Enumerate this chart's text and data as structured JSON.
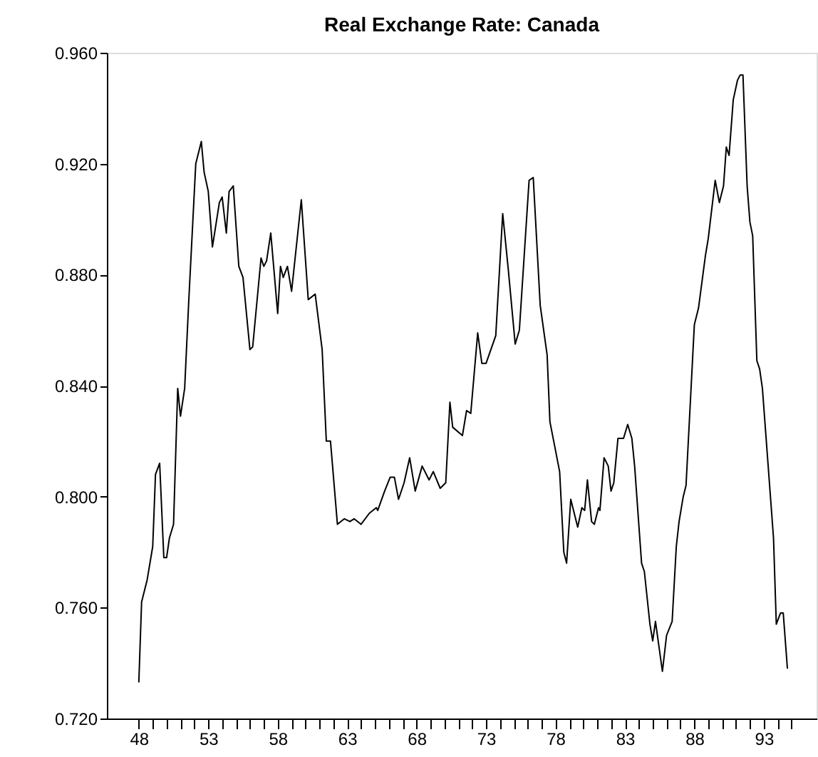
{
  "chart_data": {
    "type": "line",
    "title": "Real Exchange Rate: Canada",
    "x": [
      48.0,
      48.2,
      48.6,
      49.0,
      49.2,
      49.5,
      49.8,
      50.0,
      50.2,
      50.5,
      50.8,
      51.0,
      51.3,
      51.6,
      52.1,
      52.5,
      52.7,
      53.0,
      53.3,
      53.8,
      54.0,
      54.3,
      54.5,
      54.8,
      55.2,
      55.5,
      56.0,
      56.2,
      56.8,
      57.0,
      57.2,
      57.5,
      58.0,
      58.2,
      58.4,
      58.7,
      59.0,
      59.7,
      60.2,
      60.7,
      61.2,
      61.5,
      61.8,
      62.3,
      62.8,
      63.2,
      63.5,
      64.0,
      64.6,
      65.1,
      65.2,
      65.7,
      66.1,
      66.4,
      66.7,
      67.1,
      67.5,
      67.9,
      68.4,
      68.9,
      69.2,
      69.7,
      70.1,
      70.4,
      70.6,
      71.3,
      71.6,
      71.9,
      72.4,
      72.7,
      73.0,
      73.7,
      74.2,
      74.6,
      75.1,
      75.4,
      76.1,
      76.4,
      76.9,
      77.4,
      77.6,
      78.3,
      78.6,
      78.8,
      79.1,
      79.6,
      79.9,
      80.1,
      80.3,
      80.6,
      80.8,
      81.1,
      81.2,
      81.5,
      81.8,
      82.0,
      82.2,
      82.5,
      82.9,
      83.2,
      83.5,
      83.7,
      84.2,
      84.4,
      84.8,
      85.0,
      85.2,
      85.7,
      86.0,
      86.4,
      86.7,
      86.9,
      87.2,
      87.4,
      88.0,
      88.3,
      88.8,
      89.0,
      89.5,
      89.8,
      90.1,
      90.3,
      90.5,
      90.8,
      91.1,
      91.3,
      91.5,
      91.8,
      92.0,
      92.2,
      92.5,
      92.7,
      92.9,
      93.7,
      93.9,
      94.2,
      94.4,
      94.7
    ],
    "series": [
      {
        "color": "#000000",
        "values": [
          0.733,
          0.762,
          0.77,
          0.782,
          0.808,
          0.812,
          0.778,
          0.778,
          0.785,
          0.79,
          0.839,
          0.829,
          0.839,
          0.871,
          0.92,
          0.928,
          0.917,
          0.91,
          0.89,
          0.906,
          0.908,
          0.895,
          0.91,
          0.912,
          0.883,
          0.879,
          0.853,
          0.854,
          0.886,
          0.883,
          0.885,
          0.895,
          0.866,
          0.883,
          0.879,
          0.883,
          0.874,
          0.907,
          0.871,
          0.873,
          0.853,
          0.82,
          0.82,
          0.79,
          0.792,
          0.791,
          0.792,
          0.79,
          0.794,
          0.796,
          0.795,
          0.802,
          0.807,
          0.807,
          0.799,
          0.805,
          0.814,
          0.802,
          0.811,
          0.806,
          0.809,
          0.803,
          0.805,
          0.834,
          0.825,
          0.822,
          0.831,
          0.83,
          0.859,
          0.848,
          0.848,
          0.858,
          0.902,
          0.882,
          0.855,
          0.86,
          0.914,
          0.915,
          0.869,
          0.851,
          0.827,
          0.809,
          0.78,
          0.776,
          0.799,
          0.789,
          0.796,
          0.795,
          0.806,
          0.791,
          0.79,
          0.796,
          0.795,
          0.814,
          0.811,
          0.802,
          0.805,
          0.821,
          0.821,
          0.826,
          0.821,
          0.811,
          0.776,
          0.773,
          0.754,
          0.748,
          0.755,
          0.737,
          0.75,
          0.755,
          0.782,
          0.791,
          0.8,
          0.804,
          0.862,
          0.868,
          0.887,
          0.893,
          0.914,
          0.906,
          0.912,
          0.926,
          0.923,
          0.943,
          0.95,
          0.952,
          0.952,
          0.912,
          0.899,
          0.894,
          0.849,
          0.846,
          0.839,
          0.785,
          0.754,
          0.758,
          0.758,
          0.738
        ]
      }
    ],
    "xlim": [
      45.7,
      96.8
    ],
    "xticks": [
      48,
      {
        "value": 49,
        "label": null
      },
      {
        "value": 50,
        "label": null
      },
      {
        "value": 51,
        "label": null
      },
      {
        "value": 52,
        "label": null
      },
      53,
      {
        "value": 54,
        "label": null
      },
      {
        "value": 55,
        "label": null
      },
      {
        "value": 56,
        "label": null
      },
      {
        "value": 57,
        "label": null
      },
      58,
      {
        "value": 59,
        "label": null
      },
      {
        "value": 60,
        "label": null
      },
      {
        "value": 61,
        "label": null
      },
      {
        "value": 62,
        "label": null
      },
      63,
      {
        "value": 64,
        "label": null
      },
      {
        "value": 65,
        "label": null
      },
      {
        "value": 66,
        "label": null
      },
      {
        "value": 67,
        "label": null
      },
      68,
      {
        "value": 69,
        "label": null
      },
      {
        "value": 70,
        "label": null
      },
      {
        "value": 71,
        "label": null
      },
      {
        "value": 72,
        "label": null
      },
      73,
      {
        "value": 74,
        "label": null
      },
      {
        "value": 75,
        "label": null
      },
      {
        "value": 76,
        "label": null
      },
      {
        "value": 77,
        "label": null
      },
      78,
      {
        "value": 79,
        "label": null
      },
      {
        "value": 80,
        "label": null
      },
      {
        "value": 81,
        "label": null
      },
      {
        "value": 82,
        "label": null
      },
      83,
      {
        "value": 84,
        "label": null
      },
      {
        "value": 85,
        "label": null
      },
      {
        "value": 86,
        "label": null
      },
      {
        "value": 87,
        "label": null
      },
      88,
      {
        "value": 89,
        "label": null
      },
      {
        "value": 90,
        "label": null
      },
      {
        "value": 91,
        "label": null
      },
      {
        "value": 92,
        "label": null
      },
      93,
      {
        "value": 94,
        "label": null
      },
      {
        "value": 95,
        "label": null
      }
    ],
    "ylim": [
      0.72,
      0.96
    ],
    "yticks": [
      {
        "value": 0.72,
        "label": "0.720"
      },
      {
        "value": 0.76,
        "label": "0.760"
      },
      {
        "value": 0.8,
        "label": "0.800"
      },
      {
        "value": 0.84,
        "label": "0.840"
      },
      {
        "value": 0.88,
        "label": "0.880"
      },
      {
        "value": 0.92,
        "label": "0.920"
      },
      {
        "value": 0.96,
        "label": "0.960"
      }
    ],
    "grid": false,
    "legend": false,
    "marker": "none",
    "line_style": "solid"
  }
}
